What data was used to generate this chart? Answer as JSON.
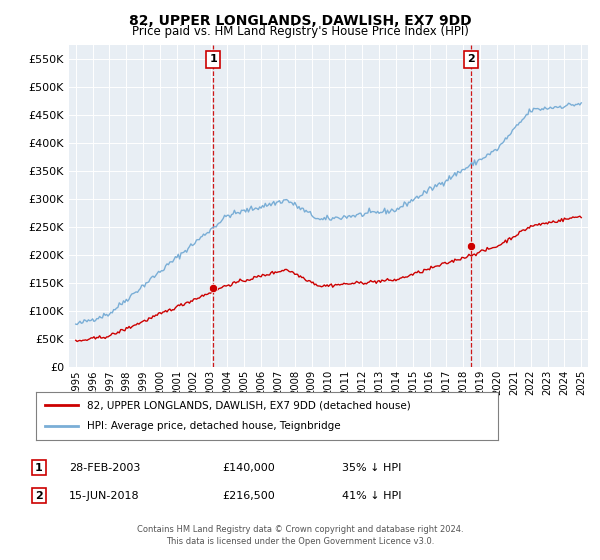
{
  "title": "82, UPPER LONGLANDS, DAWLISH, EX7 9DD",
  "subtitle": "Price paid vs. HM Land Registry's House Price Index (HPI)",
  "sale1_date_num": 2003.16,
  "sale1_price": 140000,
  "sale2_date_num": 2018.46,
  "sale2_price": 216500,
  "red_color": "#cc0000",
  "blue_color": "#7aaed6",
  "marker_color": "#cc0000",
  "dashed_color": "#cc0000",
  "ylim": [
    0,
    575000
  ],
  "yticks": [
    0,
    50000,
    100000,
    150000,
    200000,
    250000,
    300000,
    350000,
    400000,
    450000,
    500000,
    550000
  ],
  "xlabel_years": [
    1995,
    1996,
    1997,
    1998,
    1999,
    2000,
    2001,
    2002,
    2003,
    2004,
    2005,
    2006,
    2007,
    2008,
    2009,
    2010,
    2011,
    2012,
    2013,
    2014,
    2015,
    2016,
    2017,
    2018,
    2019,
    2020,
    2021,
    2022,
    2023,
    2024,
    2025
  ],
  "background_color": "#e8eef4",
  "legend_label_red": "82, UPPER LONGLANDS, DAWLISH, EX7 9DD (detached house)",
  "legend_label_blue": "HPI: Average price, detached house, Teignbridge",
  "footer1": "Contains HM Land Registry data © Crown copyright and database right 2024.",
  "footer2": "This data is licensed under the Open Government Licence v3.0."
}
